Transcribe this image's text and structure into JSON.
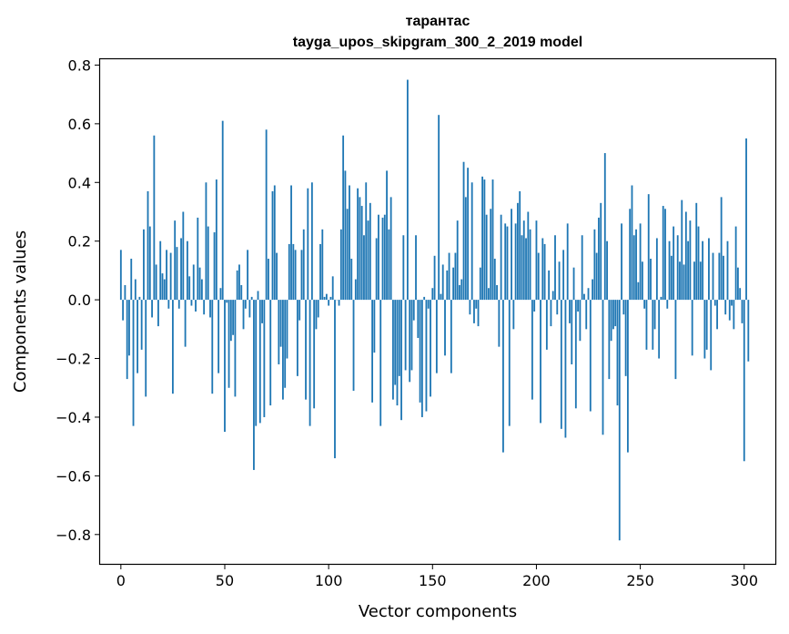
{
  "chart_data": {
    "type": "bar",
    "title": "тарантас",
    "subtitle": "tayga_upos_skipgram_300_2_2019 model",
    "xlabel": "Vector components",
    "ylabel": "Components values",
    "xlim": [
      -10,
      315
    ],
    "ylim": [
      -0.9,
      0.82
    ],
    "x_ticks": [
      0,
      50,
      100,
      150,
      200,
      250,
      300
    ],
    "x_tick_labels": [
      "0",
      "50",
      "100",
      "150",
      "200",
      "250",
      "300"
    ],
    "y_ticks": [
      -0.8,
      -0.6,
      -0.4,
      -0.2,
      0.0,
      0.2,
      0.4,
      0.6,
      0.8
    ],
    "y_tick_labels": [
      "−0.8",
      "−0.6",
      "−0.4",
      "−0.2",
      "0.0",
      "0.2",
      "0.4",
      "0.6",
      "0.8"
    ],
    "grid": false,
    "bar_color": "#1f77b4",
    "values": [
      0.17,
      -0.07,
      0.05,
      -0.27,
      -0.19,
      0.14,
      -0.43,
      0.07,
      -0.25,
      0.01,
      -0.17,
      0.24,
      -0.33,
      0.37,
      0.25,
      -0.06,
      0.56,
      0.12,
      -0.09,
      0.2,
      0.09,
      0.07,
      0.17,
      -0.03,
      0.16,
      -0.32,
      0.27,
      0.18,
      -0.03,
      0.21,
      0.3,
      -0.16,
      0.2,
      0.08,
      -0.02,
      0.12,
      -0.04,
      0.28,
      0.11,
      0.07,
      -0.05,
      0.4,
      0.25,
      -0.06,
      -0.32,
      0.23,
      0.41,
      -0.25,
      0.04,
      0.61,
      -0.45,
      -0.01,
      -0.3,
      -0.14,
      -0.12,
      -0.33,
      0.1,
      0.12,
      0.05,
      -0.1,
      -0.03,
      0.17,
      -0.06,
      0.01,
      -0.58,
      -0.43,
      0.03,
      -0.42,
      -0.08,
      -0.4,
      0.58,
      0.14,
      -0.36,
      0.37,
      0.39,
      0.16,
      -0.22,
      -0.16,
      -0.34,
      -0.3,
      -0.2,
      0.19,
      0.39,
      0.19,
      0.17,
      -0.26,
      -0.07,
      0.17,
      0.24,
      -0.34,
      0.38,
      -0.43,
      0.4,
      -0.37,
      -0.1,
      -0.06,
      0.19,
      0.24,
      0.01,
      0.02,
      -0.02,
      0.01,
      0.08,
      -0.54,
      0.0,
      -0.02,
      0.24,
      0.56,
      0.44,
      0.31,
      0.39,
      0.14,
      -0.31,
      0.07,
      0.38,
      0.35,
      0.32,
      0.22,
      0.4,
      0.27,
      0.33,
      -0.35,
      -0.18,
      0.21,
      0.29,
      -0.43,
      0.28,
      0.29,
      0.44,
      0.24,
      0.35,
      -0.34,
      -0.29,
      -0.36,
      -0.26,
      -0.41,
      0.22,
      -0.24,
      0.75,
      -0.28,
      -0.24,
      -0.07,
      0.22,
      -0.13,
      -0.35,
      -0.4,
      0.01,
      -0.38,
      -0.03,
      -0.33,
      0.04,
      0.15,
      -0.25,
      0.63,
      0.02,
      0.12,
      -0.19,
      0.1,
      0.16,
      -0.25,
      0.11,
      0.16,
      0.27,
      0.05,
      0.07,
      0.47,
      0.35,
      0.45,
      -0.05,
      0.4,
      -0.08,
      -0.03,
      -0.09,
      0.11,
      0.42,
      0.41,
      0.29,
      0.04,
      0.31,
      0.41,
      0.14,
      0.05,
      -0.16,
      0.29,
      -0.52,
      0.26,
      0.25,
      -0.43,
      0.31,
      -0.1,
      0.26,
      0.33,
      0.37,
      0.22,
      0.27,
      0.21,
      0.3,
      0.24,
      -0.34,
      -0.04,
      0.27,
      0.16,
      -0.42,
      0.21,
      0.19,
      -0.17,
      0.1,
      -0.09,
      0.03,
      0.22,
      -0.05,
      0.13,
      -0.44,
      0.17,
      -0.47,
      0.26,
      -0.08,
      -0.22,
      0.11,
      -0.37,
      -0.04,
      -0.14,
      0.22,
      0.02,
      -0.1,
      0.04,
      -0.38,
      0.07,
      0.24,
      0.16,
      0.28,
      0.33,
      -0.46,
      0.5,
      0.2,
      -0.27,
      -0.14,
      -0.1,
      -0.09,
      -0.36,
      -0.82,
      0.26,
      -0.05,
      -0.26,
      -0.52,
      0.31,
      0.39,
      0.22,
      0.24,
      0.06,
      0.26,
      0.13,
      -0.03,
      -0.17,
      0.36,
      0.14,
      -0.17,
      -0.1,
      0.21,
      -0.2,
      0.01,
      0.32,
      0.31,
      -0.03,
      0.2,
      0.15,
      0.25,
      -0.27,
      0.22,
      0.13,
      0.34,
      0.12,
      0.3,
      0.2,
      0.27,
      -0.19,
      0.13,
      0.33,
      0.25,
      0.13,
      0.2,
      -0.2,
      -0.17,
      0.21,
      -0.24,
      0.16,
      -0.02,
      -0.1,
      0.16,
      0.35,
      0.15,
      -0.05,
      0.2,
      -0.07,
      -0.02,
      -0.1,
      0.25,
      0.11,
      0.04,
      -0.08,
      -0.55,
      0.55,
      -0.21
    ]
  }
}
